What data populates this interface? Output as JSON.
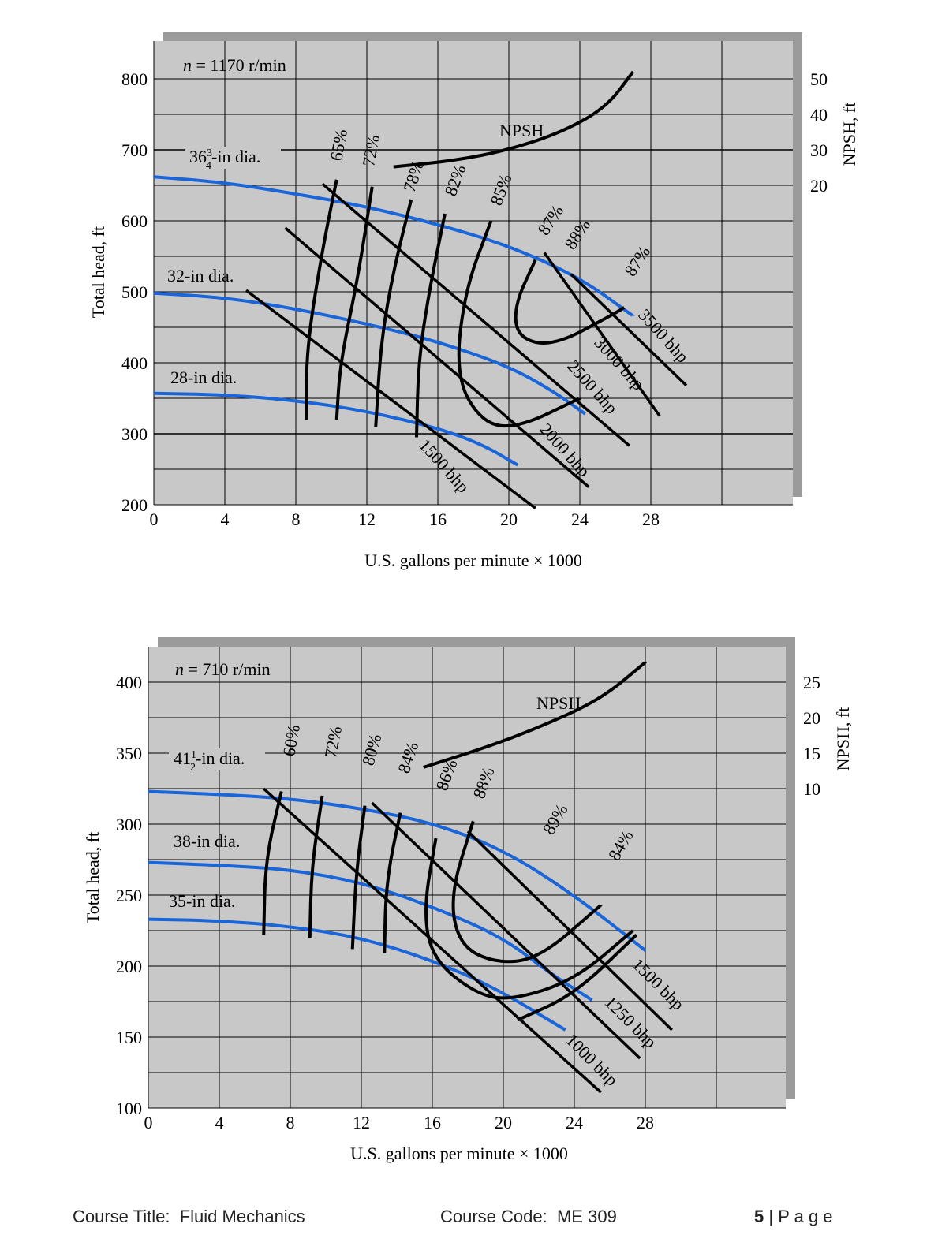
{
  "page": {
    "footer_course_title_label": "Course Title:",
    "footer_course_title": "Fluid Mechanics",
    "footer_course_code_label": "Course Code:",
    "footer_course_code": "ME 309",
    "page_number": "5",
    "page_separator": " | ",
    "page_word": "P a g e"
  },
  "colors": {
    "chart_bg": "#c8c8c8",
    "shadow": "#9b9b9b",
    "diameter_curve": "#1a66d9",
    "curve": "#000000",
    "grid": "#000000"
  },
  "chart_data": [
    {
      "type": "line",
      "speed_label_italic": "n",
      "speed_label_rest": " = 1170 r/min",
      "xlabel": "U.S. gallons per minute × 1000",
      "ylabel": "Total head, ft",
      "y2label": "NPSH, ft",
      "xlim": [
        0,
        36
      ],
      "ylim": [
        200,
        850
      ],
      "x_ticks": [
        0,
        4,
        8,
        12,
        16,
        20,
        24,
        28
      ],
      "y_ticks": [
        200,
        300,
        400,
        500,
        600,
        700,
        800
      ],
      "y2_ticks": [
        {
          "label": "20",
          "head": 650
        },
        {
          "label": "30",
          "head": 700
        },
        {
          "label": "40",
          "head": 750
        },
        {
          "label": "50",
          "head": 800
        }
      ],
      "diameter_curves": [
        {
          "name": "36 3/4 -in dia.",
          "label_main": "36",
          "label_num": "3",
          "label_den": "4",
          "label_suffix": "-in dia.",
          "points": [
            [
              0,
              662
            ],
            [
              4,
              654
            ],
            [
              8,
              638
            ],
            [
              12,
              620
            ],
            [
              16,
              595
            ],
            [
              20,
              565
            ],
            [
              24,
              520
            ],
            [
              27,
              466
            ]
          ]
        },
        {
          "name": "32-in dia.",
          "label": "32-in dia.",
          "points": [
            [
              0,
              498
            ],
            [
              4,
              492
            ],
            [
              8,
              476
            ],
            [
              12,
              455
            ],
            [
              16,
              430
            ],
            [
              20,
              395
            ],
            [
              22.5,
              360
            ],
            [
              24.3,
              328
            ]
          ]
        },
        {
          "name": "28-in dia.",
          "label": "28-in dia.",
          "points": [
            [
              0,
              357
            ],
            [
              4,
              355
            ],
            [
              8,
              347
            ],
            [
              12,
              332
            ],
            [
              16,
              308
            ],
            [
              18.5,
              285
            ],
            [
              20.5,
              256
            ]
          ]
        }
      ],
      "efficiency_curves": [
        {
          "label": "65%",
          "points": [
            [
              10.3,
              658
            ],
            [
              9.5,
              560
            ],
            [
              8.6,
              420
            ],
            [
              8.6,
              320
            ]
          ]
        },
        {
          "label": "72%",
          "points": [
            [
              12.3,
              648
            ],
            [
              11.5,
              520
            ],
            [
              10.5,
              400
            ],
            [
              10.3,
              320
            ]
          ]
        },
        {
          "label": "78%",
          "points": [
            [
              14.5,
              630
            ],
            [
              13.5,
              530
            ],
            [
              12.8,
              430
            ],
            [
              12.5,
              310
            ]
          ]
        },
        {
          "label": "82%",
          "points": [
            [
              16.4,
              610
            ],
            [
              15.5,
              500
            ],
            [
              14.9,
              400
            ],
            [
              14.8,
              295
            ]
          ]
        },
        {
          "label": "85%",
          "points": [
            [
              19,
              600
            ],
            [
              17.5,
              500
            ],
            [
              17,
              380
            ],
            [
              18.5,
              315
            ],
            [
              20.5,
              308
            ],
            [
              24,
              350
            ]
          ]
        },
        {
          "label": "87%",
          "points": [
            [
              21.5,
              545
            ],
            [
              20.3,
              480
            ],
            [
              20.5,
              435
            ],
            [
              22.5,
              423
            ],
            [
              26,
              470
            ],
            [
              26.5,
              478
            ]
          ]
        },
        {
          "label": "88%",
          "points": [],
          "label_only": true
        },
        {
          "label": "87%",
          "points": [],
          "label_only": true
        }
      ],
      "power_lines": [
        {
          "label": "1500 bhp",
          "from": [
            5.2,
            502
          ],
          "to": [
            21.5,
            195
          ]
        },
        {
          "label": "2000 bhp",
          "from": [
            7.4,
            590
          ],
          "to": [
            24.5,
            225
          ]
        },
        {
          "label": "2500 bhp",
          "from": [
            9.5,
            652
          ],
          "to": [
            26.8,
            283
          ]
        },
        {
          "label": "3000 bhp",
          "from": [
            22,
            555
          ],
          "to": [
            28.5,
            325
          ]
        },
        {
          "label": "3500 bhp",
          "from": [
            23.5,
            525
          ],
          "to": [
            30,
            368
          ]
        }
      ],
      "npsh_curve": {
        "label": "NPSH",
        "points": [
          [
            13.5,
            676
          ],
          [
            17,
            685
          ],
          [
            20,
            700
          ],
          [
            23,
            725
          ],
          [
            25.5,
            760
          ],
          [
            27,
            810
          ]
        ]
      },
      "annotations": [
        "65%",
        "72%",
        "78%",
        "82%",
        "85%",
        "87%",
        "88%",
        "87%",
        "1500 bhp",
        "2000 bhp",
        "2500 bhp",
        "3000 bhp",
        "3500 bhp",
        "NPSH"
      ]
    },
    {
      "type": "line",
      "speed_label_italic": "n",
      "speed_label_rest": " = 710 r/min",
      "xlabel": "U.S. gallons per minute × 1000",
      "ylabel": "Total head, ft",
      "y2label": "NPSH, ft",
      "xlim": [
        0,
        36
      ],
      "ylim": [
        100,
        425
      ],
      "x_ticks": [
        0,
        4,
        8,
        12,
        16,
        20,
        24,
        28
      ],
      "y_ticks": [
        100,
        150,
        200,
        250,
        300,
        350,
        400
      ],
      "y2_ticks": [
        {
          "label": "10",
          "head": 325
        },
        {
          "label": "15",
          "head": 350
        },
        {
          "label": "20",
          "head": 375
        },
        {
          "label": "25",
          "head": 400
        }
      ],
      "diameter_curves": [
        {
          "name": "41 1/2 -in dia.",
          "label_main": "41",
          "label_num": "1",
          "label_den": "2",
          "label_suffix": "-in dia.",
          "points": [
            [
              0,
              323
            ],
            [
              4,
              321
            ],
            [
              8,
              318
            ],
            [
              12,
              311
            ],
            [
              16,
              301
            ],
            [
              20,
              282
            ],
            [
              24,
              250
            ],
            [
              28,
              211
            ]
          ]
        },
        {
          "name": "38-in dia.",
          "label": "38-in dia.",
          "points": [
            [
              0,
              273
            ],
            [
              4,
              271
            ],
            [
              8,
              268
            ],
            [
              12,
              259
            ],
            [
              16,
              242
            ],
            [
              20,
              220
            ],
            [
              22.5,
              196
            ],
            [
              25,
              176
            ]
          ]
        },
        {
          "name": "35-in dia.",
          "label": "35-in dia.",
          "points": [
            [
              0,
              233
            ],
            [
              4,
              232
            ],
            [
              8,
              228
            ],
            [
              12,
              220
            ],
            [
              16,
              204
            ],
            [
              19.5,
              185
            ],
            [
              23.5,
              155
            ]
          ]
        }
      ],
      "efficiency_curves": [
        {
          "label": "60%",
          "points": [
            [
              7.5,
              323
            ],
            [
              6.6,
              275
            ],
            [
              6.5,
              222
            ]
          ]
        },
        {
          "label": "72%",
          "points": [
            [
              9.8,
              320
            ],
            [
              9.2,
              270
            ],
            [
              9.1,
              220
            ]
          ]
        },
        {
          "label": "80%",
          "points": [
            [
              12.2,
              313
            ],
            [
              11.7,
              265
            ],
            [
              11.5,
              212
            ]
          ]
        },
        {
          "label": "84%",
          "points": [
            [
              14.2,
              308
            ],
            [
              13.4,
              260
            ],
            [
              13.3,
              209
            ]
          ]
        },
        {
          "label": "86%",
          "points": [
            [
              16.2,
              290
            ],
            [
              15.5,
              240
            ],
            [
              16,
              205
            ],
            [
              18.5,
              180
            ],
            [
              20.5,
              176
            ],
            [
              24,
              190
            ],
            [
              27.3,
              225
            ]
          ]
        },
        {
          "label": "88%",
          "points": [
            [
              18.3,
              302
            ],
            [
              17,
              250
            ],
            [
              17.5,
              215
            ],
            [
              19.5,
              202
            ],
            [
              22,
              205
            ],
            [
              25.5,
              243
            ]
          ]
        },
        {
          "label": "89%",
          "points": [],
          "label_only": true
        },
        {
          "label": "84%",
          "points": [
            [
              20.8,
              162
            ],
            [
              24,
              180
            ],
            [
              27.5,
              222
            ]
          ]
        }
      ],
      "power_lines": [
        {
          "label": "1000 bhp",
          "from": [
            6.5,
            325
          ],
          "to": [
            25.5,
            111
          ]
        },
        {
          "label": "1250 bhp",
          "from": [
            12.6,
            315
          ],
          "to": [
            27.7,
            135
          ]
        },
        {
          "label": "1500 bhp",
          "from": [
            18,
            295
          ],
          "to": [
            29.5,
            155
          ]
        }
      ],
      "npsh_curve": {
        "label": "NPSH",
        "points": [
          [
            15.5,
            340
          ],
          [
            19,
            354
          ],
          [
            22,
            368
          ],
          [
            25.5,
            388
          ],
          [
            28,
            414
          ]
        ]
      },
      "annotations": [
        "60%",
        "72%",
        "80%",
        "84%",
        "86%",
        "88%",
        "89%",
        "88%",
        "86%",
        "84%",
        "1000 bhp",
        "1250 bhp",
        "1500 bhp",
        "NPSH"
      ]
    }
  ]
}
